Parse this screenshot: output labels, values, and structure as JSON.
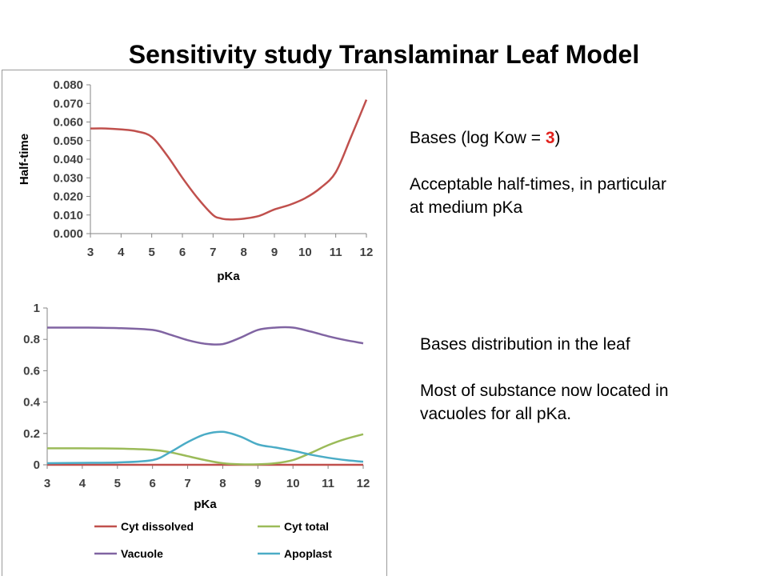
{
  "title": "Sensitivity study Translaminar Leaf Model",
  "note1": {
    "line1_prefix": "Bases  (log Kow = ",
    "line1_value": "3",
    "line1_suffix": ")",
    "line2": "Acceptable half-times, in particular",
    "line3": "at medium pKa"
  },
  "note2": {
    "line1": "Bases distribution in the leaf",
    "line2": "Most of substance now located in",
    "line3": "vacuoles for all pKa."
  },
  "chart_data": [
    {
      "type": "line",
      "xlabel": "pKa",
      "ylabel": "Half-time",
      "x_ticks": [
        "3",
        "4",
        "5",
        "6",
        "7",
        "8",
        "9",
        "10",
        "11",
        "12"
      ],
      "y_ticks": [
        "0.000",
        "0.010",
        "0.020",
        "0.030",
        "0.040",
        "0.050",
        "0.060",
        "0.070",
        "0.080"
      ],
      "xlim": [
        3,
        12
      ],
      "ylim": [
        0,
        0.08
      ],
      "grid": false,
      "series": [
        {
          "color": "#c0504d",
          "x": [
            3,
            3.5,
            4,
            4.5,
            5,
            5.5,
            6,
            6.5,
            7,
            7.25,
            7.5,
            7.75,
            8,
            8.5,
            9,
            9.5,
            10,
            10.5,
            11,
            11.5,
            12
          ],
          "y": [
            0.0565,
            0.0565,
            0.056,
            0.055,
            0.052,
            0.042,
            0.03,
            0.019,
            0.01,
            0.0082,
            0.0076,
            0.0077,
            0.008,
            0.0095,
            0.013,
            0.0155,
            0.019,
            0.0245,
            0.033,
            0.052,
            0.072
          ]
        }
      ]
    },
    {
      "type": "line",
      "xlabel": "pKa",
      "ylabel": "",
      "x_ticks": [
        "3",
        "4",
        "5",
        "6",
        "7",
        "8",
        "9",
        "10",
        "11",
        "12"
      ],
      "y_ticks": [
        "0",
        "0.2",
        "0.4",
        "0.6",
        "0.8",
        "1"
      ],
      "xlim": [
        3,
        12
      ],
      "ylim": [
        0,
        1
      ],
      "grid": false,
      "legend": "bottom",
      "series": [
        {
          "name": "Cyt dissolved",
          "color": "#c0504d",
          "x": [
            3,
            4,
            5,
            6,
            7,
            8,
            9,
            10,
            11,
            12
          ],
          "y": [
            0,
            0,
            0,
            0,
            0,
            0,
            0,
            0,
            0,
            0
          ]
        },
        {
          "name": "Cyt total",
          "color": "#9bbb59",
          "x": [
            3,
            4,
            5,
            6,
            6.5,
            7,
            7.5,
            8,
            8.5,
            9,
            9.5,
            10,
            10.5,
            11,
            11.5,
            12
          ],
          "y": [
            0.105,
            0.105,
            0.103,
            0.095,
            0.08,
            0.055,
            0.03,
            0.01,
            0.003,
            0.003,
            0.01,
            0.03,
            0.075,
            0.125,
            0.165,
            0.195
          ]
        },
        {
          "name": "Vacuole",
          "color": "#8064a2",
          "x": [
            3,
            4,
            5,
            6,
            6.5,
            7,
            7.5,
            8,
            8.5,
            9,
            9.5,
            10,
            10.5,
            11,
            11.5,
            12
          ],
          "y": [
            0.875,
            0.875,
            0.872,
            0.86,
            0.83,
            0.795,
            0.772,
            0.77,
            0.81,
            0.86,
            0.875,
            0.875,
            0.85,
            0.82,
            0.795,
            0.775
          ]
        },
        {
          "name": "Apoplast",
          "color": "#4bacc6",
          "x": [
            3,
            4,
            5,
            6,
            6.5,
            7,
            7.5,
            8,
            8.5,
            9,
            9.5,
            10,
            10.5,
            11,
            11.5,
            12
          ],
          "y": [
            0.01,
            0.012,
            0.015,
            0.03,
            0.08,
            0.145,
            0.195,
            0.21,
            0.18,
            0.13,
            0.11,
            0.09,
            0.065,
            0.045,
            0.03,
            0.02
          ]
        }
      ]
    }
  ]
}
